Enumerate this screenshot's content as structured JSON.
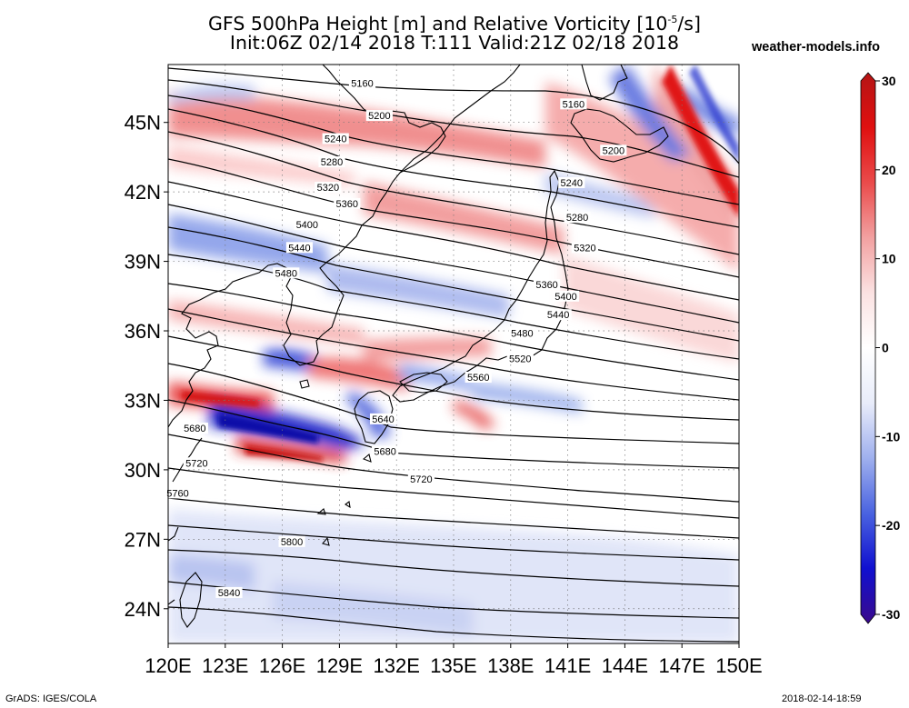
{
  "title_line1_pre": "GFS 500hPa Height [m] and Relative Vorticity [10",
  "title_line1_exp": "-5",
  "title_line1_post": "/s]",
  "title_line2": "Init:06Z 02/14 2018 T:111 Valid:21Z 02/18 2018",
  "site": "weather-models.info",
  "footer_left": "GrADS: IGES/COLA",
  "footer_right": "2018-02-14-18:59",
  "map": {
    "lon_range": [
      120,
      150
    ],
    "lat_range": [
      22.5,
      47.5
    ],
    "lat_ticks": [
      "24N",
      "27N",
      "30N",
      "33N",
      "36N",
      "39N",
      "42N",
      "45N"
    ],
    "lon_ticks": [
      "120E",
      "123E",
      "126E",
      "129E",
      "132E",
      "135E",
      "138E",
      "141E",
      "144E",
      "147E",
      "150E"
    ],
    "gridlines": "dotted",
    "contour_labels": [
      {
        "text": "5160",
        "lon": 130.2,
        "lat": 46.7
      },
      {
        "text": "5200",
        "lon": 131.1,
        "lat": 45.3
      },
      {
        "text": "5240",
        "lon": 128.8,
        "lat": 44.3
      },
      {
        "text": "5280",
        "lon": 128.6,
        "lat": 43.3
      },
      {
        "text": "5320",
        "lon": 128.4,
        "lat": 42.2
      },
      {
        "text": "5360",
        "lon": 129.4,
        "lat": 41.5
      },
      {
        "text": "5400",
        "lon": 127.3,
        "lat": 40.6
      },
      {
        "text": "5440",
        "lon": 126.9,
        "lat": 39.6
      },
      {
        "text": "5480",
        "lon": 126.2,
        "lat": 38.5
      },
      {
        "text": "5160",
        "lon": 141.3,
        "lat": 45.8
      },
      {
        "text": "5200",
        "lon": 143.4,
        "lat": 43.8
      },
      {
        "text": "5240",
        "lon": 141.2,
        "lat": 42.4
      },
      {
        "text": "5280",
        "lon": 141.5,
        "lat": 40.9
      },
      {
        "text": "5320",
        "lon": 141.9,
        "lat": 39.6
      },
      {
        "text": "5360",
        "lon": 139.9,
        "lat": 38.0
      },
      {
        "text": "5400",
        "lon": 140.9,
        "lat": 37.5
      },
      {
        "text": "5440",
        "lon": 140.5,
        "lat": 36.7
      },
      {
        "text": "5480",
        "lon": 138.6,
        "lat": 35.9
      },
      {
        "text": "5520",
        "lon": 138.5,
        "lat": 34.8
      },
      {
        "text": "5560",
        "lon": 136.3,
        "lat": 34.0
      },
      {
        "text": "5640",
        "lon": 131.3,
        "lat": 32.2
      },
      {
        "text": "5680",
        "lon": 121.4,
        "lat": 31.8
      },
      {
        "text": "5680",
        "lon": 131.4,
        "lat": 30.8
      },
      {
        "text": "5720",
        "lon": 121.5,
        "lat": 30.3
      },
      {
        "text": "5720",
        "lon": 133.3,
        "lat": 29.6
      },
      {
        "text": "5760",
        "lon": 120.5,
        "lat": 29.0
      },
      {
        "text": "5800",
        "lon": 126.5,
        "lat": 26.9
      },
      {
        "text": "5840",
        "lon": 123.2,
        "lat": 24.7
      }
    ]
  },
  "colorbar": {
    "labels": [
      "30",
      "20",
      "10",
      "0",
      "-10",
      "-20",
      "-30"
    ],
    "min": -30,
    "max": 30,
    "colors": [
      "#3a0a8c",
      "#1010d0",
      "#4a63e0",
      "#9fb0ee",
      "#e8ecfa",
      "#ffffff",
      "#fbe2e2",
      "#f2a1a1",
      "#ea4b4b",
      "#e01010",
      "#b51515"
    ]
  }
}
